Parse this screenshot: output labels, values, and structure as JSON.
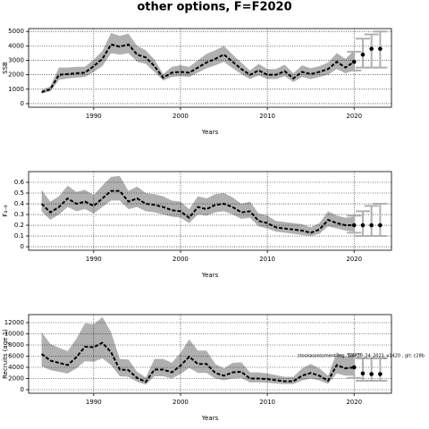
{
  "title": "other options, F=F2020",
  "chart_data": [
    {
      "type": "line",
      "xlabel": "Years",
      "ylabel": "SSB",
      "color": "#000000",
      "band_color": "#b0b0b0",
      "forecast_color": "#b0b0b0",
      "grid": true,
      "x": [
        1984,
        1985,
        1986,
        1987,
        1988,
        1989,
        1990,
        1991,
        1992,
        1993,
        1994,
        1995,
        1996,
        1997,
        1998,
        1999,
        2000,
        2001,
        2002,
        2003,
        2004,
        2005,
        2006,
        2007,
        2008,
        2009,
        2010,
        2011,
        2012,
        2013,
        2014,
        2015,
        2016,
        2017,
        2018,
        2019,
        2020
      ],
      "values": [
        800,
        1000,
        2000,
        2050,
        2100,
        2150,
        2600,
        3100,
        4100,
        3950,
        4100,
        3400,
        3200,
        2600,
        1800,
        2150,
        2200,
        2150,
        2500,
        2850,
        3100,
        3400,
        2900,
        2400,
        2000,
        2300,
        2000,
        2000,
        2250,
        1750,
        2200,
        2050,
        2200,
        2400,
        2900,
        2500,
        2900
      ],
      "lower": [
        700,
        850,
        1650,
        1750,
        1800,
        1850,
        2200,
        2600,
        3500,
        3400,
        3500,
        2900,
        2750,
        2200,
        1600,
        1850,
        1900,
        1850,
        2150,
        2450,
        2650,
        2900,
        2450,
        2050,
        1700,
        1950,
        1700,
        1700,
        1900,
        1500,
        1850,
        1700,
        1850,
        2000,
        2400,
        2100,
        2300
      ],
      "upper": [
        950,
        1200,
        2500,
        2500,
        2550,
        2550,
        3050,
        3650,
        4900,
        4700,
        4850,
        4000,
        3700,
        3050,
        2050,
        2550,
        2650,
        2550,
        3000,
        3450,
        3700,
        4000,
        3400,
        2850,
        2300,
        2750,
        2400,
        2400,
        2700,
        2100,
        2650,
        2450,
        2600,
        2850,
        3500,
        3100,
        3700
      ],
      "forecast": {
        "x": [
          2020,
          2021,
          2022,
          2023
        ],
        "values": [
          2900,
          3400,
          3800,
          3800
        ],
        "lower": [
          2300,
          2500,
          2500,
          2500
        ],
        "upper": [
          3600,
          4500,
          4800,
          5000
        ]
      },
      "xlim": [
        1982.5,
        2024.3
      ],
      "xticks": [
        1990,
        2000,
        2010,
        2020
      ],
      "ylim": [
        -250,
        5200
      ],
      "yticks": [
        0,
        1000,
        2000,
        3000,
        4000,
        5000
      ]
    },
    {
      "type": "line",
      "xlabel": "Years",
      "ylabel": "F₄₋₈",
      "color": "#000000",
      "band_color": "#b0b0b0",
      "forecast_color": "#b0b0b0",
      "grid": true,
      "x": [
        1984,
        1985,
        1986,
        1987,
        1988,
        1989,
        1990,
        1991,
        1992,
        1993,
        1994,
        1995,
        1996,
        1997,
        1998,
        1999,
        2000,
        2001,
        2002,
        2003,
        2004,
        2005,
        2006,
        2007,
        2008,
        2009,
        2010,
        2011,
        2012,
        2013,
        2014,
        2015,
        2016,
        2017,
        2018,
        2019,
        2020
      ],
      "values": [
        0.4,
        0.32,
        0.37,
        0.45,
        0.4,
        0.42,
        0.38,
        0.45,
        0.52,
        0.52,
        0.42,
        0.45,
        0.4,
        0.39,
        0.37,
        0.34,
        0.33,
        0.27,
        0.37,
        0.35,
        0.39,
        0.4,
        0.37,
        0.32,
        0.33,
        0.24,
        0.22,
        0.18,
        0.17,
        0.16,
        0.15,
        0.13,
        0.16,
        0.25,
        0.22,
        0.2,
        0.2
      ],
      "lower": [
        0.33,
        0.25,
        0.3,
        0.37,
        0.33,
        0.35,
        0.31,
        0.37,
        0.43,
        0.43,
        0.35,
        0.37,
        0.33,
        0.32,
        0.3,
        0.28,
        0.27,
        0.22,
        0.3,
        0.29,
        0.32,
        0.33,
        0.3,
        0.26,
        0.27,
        0.19,
        0.17,
        0.14,
        0.13,
        0.12,
        0.11,
        0.1,
        0.12,
        0.19,
        0.17,
        0.15,
        0.14
      ],
      "upper": [
        0.53,
        0.42,
        0.47,
        0.57,
        0.51,
        0.53,
        0.48,
        0.57,
        0.65,
        0.66,
        0.52,
        0.56,
        0.5,
        0.49,
        0.47,
        0.43,
        0.42,
        0.35,
        0.47,
        0.45,
        0.49,
        0.5,
        0.46,
        0.4,
        0.42,
        0.31,
        0.29,
        0.24,
        0.23,
        0.22,
        0.21,
        0.18,
        0.22,
        0.33,
        0.29,
        0.27,
        0.28
      ],
      "forecast": {
        "x": [
          2020,
          2021,
          2022,
          2023
        ],
        "values": [
          0.2,
          0.2,
          0.2,
          0.2
        ],
        "lower": [
          0.13,
          0.1,
          0.1,
          0.1
        ],
        "upper": [
          0.29,
          0.33,
          0.38,
          0.4
        ]
      },
      "xlim": [
        1982.5,
        2024.3
      ],
      "xticks": [
        1990,
        2000,
        2010,
        2020
      ],
      "ylim": [
        -0.033,
        0.7
      ],
      "yticks": [
        0,
        0.1,
        0.2,
        0.3,
        0.4,
        0.5,
        0.6
      ]
    },
    {
      "type": "line",
      "xlabel": "Years",
      "ylabel": "Recruits (age 1)",
      "color": "#000000",
      "band_color": "#b0b0b0",
      "forecast_color": "#b0b0b0",
      "grid": true,
      "annotation": "stockassessment.org, Sole20_24_2021_v1420 , git: c28b",
      "x": [
        1984,
        1985,
        1986,
        1987,
        1988,
        1989,
        1990,
        1991,
        1992,
        1993,
        1994,
        1995,
        1996,
        1997,
        1998,
        1999,
        2000,
        2001,
        2002,
        2003,
        2004,
        2005,
        2006,
        2007,
        2008,
        2009,
        2010,
        2011,
        2012,
        2013,
        2014,
        2015,
        2016,
        2017,
        2018,
        2019,
        2020
      ],
      "values": [
        6400,
        5200,
        4800,
        4400,
        5800,
        7700,
        7600,
        8400,
        6700,
        3600,
        3500,
        2100,
        1400,
        3600,
        3600,
        3100,
        4300,
        5900,
        4600,
        4600,
        3000,
        2500,
        3100,
        3200,
        2000,
        2000,
        1900,
        1700,
        1500,
        1500,
        2500,
        3000,
        2500,
        1600,
        4400,
        3800,
        4000
      ],
      "lower": [
        4200,
        3500,
        3200,
        2900,
        3800,
        5100,
        5000,
        5600,
        4400,
        2400,
        2300,
        1400,
        900,
        2400,
        2400,
        2000,
        2800,
        3900,
        3000,
        3000,
        2000,
        1700,
        2000,
        2100,
        1300,
        1300,
        1250,
        1100,
        1000,
        1000,
        1650,
        2000,
        1650,
        1050,
        2900,
        2500,
        2500
      ],
      "upper": [
        10300,
        8200,
        7500,
        6900,
        9100,
        11900,
        11700,
        13000,
        10300,
        5500,
        5400,
        3200,
        2200,
        5500,
        5500,
        4800,
        6600,
        9000,
        7000,
        7000,
        4600,
        3800,
        4800,
        4900,
        3100,
        3100,
        2900,
        2600,
        2300,
        2300,
        3800,
        4600,
        3800,
        2500,
        6700,
        5800,
        6400
      ],
      "forecast": {
        "x": [
          2020,
          2021,
          2022,
          2023
        ],
        "values": [
          4000,
          2900,
          2800,
          2800
        ],
        "lower": [
          2100,
          1600,
          1600,
          1600
        ],
        "upper": [
          6400,
          5600,
          5600,
          5600
        ]
      },
      "xlim": [
        1982.5,
        2024.3
      ],
      "xticks": [
        1990,
        2000,
        2010,
        2020
      ],
      "ylim": [
        -640,
        13440
      ],
      "yticks": [
        0,
        2000,
        4000,
        6000,
        8000,
        10000,
        12000
      ]
    }
  ]
}
